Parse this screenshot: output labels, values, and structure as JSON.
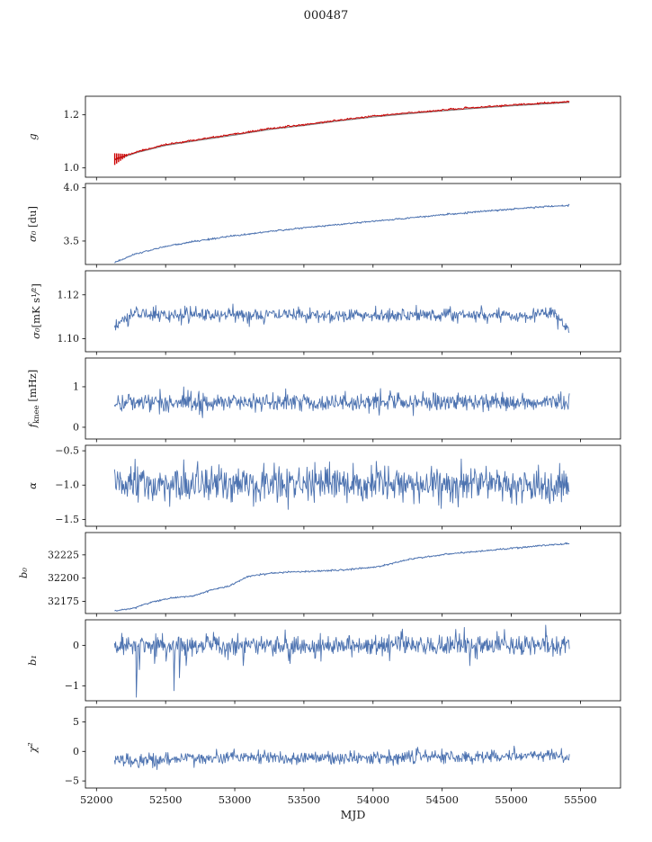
{
  "title": "000487",
  "colors": {
    "line": "#4c72b0",
    "model": "#888888",
    "fit": "#cc0000",
    "axis": "#000000",
    "text": "#1a1a1a"
  },
  "axes": {
    "xlabel": "MJD",
    "x_range": [
      51920,
      55790
    ],
    "x_ticks": [
      52000,
      52500,
      53000,
      53500,
      54000,
      54500,
      55000,
      55500
    ],
    "x_tick_labels": [
      "52000",
      "52500",
      "53000",
      "53500",
      "54000",
      "54500",
      "55000",
      "55500"
    ],
    "data_x_range": [
      52130,
      55420
    ]
  },
  "chart_data": [
    {
      "type": "line",
      "name": "g",
      "ylabel": "g",
      "ylabel_parts": [
        {
          "text": "g",
          "italic": true
        }
      ],
      "ylabel_x": 40,
      "yticks": [
        1.0,
        1.2
      ],
      "ytick_labels": [
        "1.0",
        "1.2"
      ],
      "ylim": [
        0.965,
        1.27
      ],
      "series": [
        {
          "name": "gain-model",
          "color": "#888888",
          "width": 1.3,
          "type": "smooth",
          "n": 400,
          "kx": [
            52130,
            52300,
            52500,
            52750,
            53000,
            53250,
            53500,
            53750,
            54000,
            54250,
            54500,
            54750,
            55000,
            55200,
            55420
          ],
          "ky": [
            1.03,
            1.059,
            1.085,
            1.105,
            1.124,
            1.145,
            1.16,
            1.177,
            1.192,
            1.204,
            1.215,
            1.225,
            1.234,
            1.24,
            1.247
          ]
        },
        {
          "name": "gain-fit",
          "color": "#cc0000",
          "width": 1.0,
          "type": "smooth",
          "jitter": 0.0015,
          "seed": 11,
          "n": 700,
          "kx": [
            52130,
            52300,
            52500,
            52750,
            53000,
            53250,
            53500,
            53750,
            54000,
            54250,
            54500,
            54750,
            55000,
            55200,
            55420
          ],
          "ky": [
            1.033,
            1.062,
            1.088,
            1.108,
            1.127,
            1.148,
            1.163,
            1.18,
            1.195,
            1.207,
            1.218,
            1.228,
            1.237,
            1.243,
            1.249
          ],
          "errorbars": {
            "x0": 52132,
            "x1": 52215,
            "n": 7,
            "half_start": 0.022,
            "half_end": 0.005
          }
        }
      ]
    },
    {
      "type": "line",
      "name": "sigma0-du",
      "ylabel": "σ₀ [du]",
      "ylabel_parts": [
        {
          "text": "σ₀",
          "italic": true
        },
        {
          "text": " [du]"
        }
      ],
      "ylabel_x": 40,
      "yticks": [
        3.5,
        4.0
      ],
      "ytick_labels": [
        "3.5",
        "4.0"
      ],
      "ylim": [
        3.28,
        4.04
      ],
      "series": [
        {
          "name": "sigma0-du-series",
          "color": "#4c72b0",
          "width": 1.0,
          "type": "smooth",
          "jitter": 0.004,
          "seed": 21,
          "n": 700,
          "kx": [
            52130,
            52300,
            52500,
            52750,
            53000,
            53250,
            53500,
            53750,
            54000,
            54250,
            54500,
            54750,
            55000,
            55200,
            55420
          ],
          "ky": [
            3.3,
            3.385,
            3.45,
            3.505,
            3.55,
            3.59,
            3.625,
            3.655,
            3.685,
            3.715,
            3.745,
            3.775,
            3.8,
            3.82,
            3.835
          ]
        }
      ]
    },
    {
      "type": "line",
      "name": "sigma0-mks",
      "ylabel": "σ₀[mK s¹⁄²]",
      "ylabel_parts": [
        {
          "text": "σ₀",
          "italic": true
        },
        {
          "text": "[mK s¹⁄²]"
        }
      ],
      "ylabel_x": 44,
      "yticks": [
        1.1,
        1.12
      ],
      "ytick_labels": [
        "1.10",
        "1.12"
      ],
      "ylim": [
        1.094,
        1.131
      ],
      "series": [
        {
          "name": "sigma0-mks-series",
          "color": "#4c72b0",
          "width": 0.9,
          "type": "noisy",
          "noise": 0.0016,
          "seed": 31,
          "n": 750,
          "kx": [
            52130,
            52180,
            52250,
            52320,
            52420,
            52550,
            55150,
            55300,
            55420
          ],
          "ky": [
            1.1045,
            1.108,
            1.1105,
            1.1125,
            1.1105,
            1.1108,
            1.1108,
            1.1115,
            1.1045
          ]
        }
      ]
    },
    {
      "type": "line",
      "name": "fknee",
      "ylabel": "fknee [mHz]",
      "ylabel_parts": [
        {
          "text": "f",
          "italic": true
        },
        {
          "text": "knee",
          "sub": true
        },
        {
          "text": " [mHz]"
        }
      ],
      "ylabel_x": 40,
      "yticks": [
        0,
        1
      ],
      "ytick_labels": [
        "0",
        "1"
      ],
      "ylim": [
        -0.29,
        1.71
      ],
      "series": [
        {
          "name": "fknee-series",
          "color": "#4c72b0",
          "width": 0.9,
          "type": "noisy",
          "noise": 0.115,
          "seed": 41,
          "n": 750,
          "kx": [
            52130,
            55420
          ],
          "ky": [
            0.62,
            0.62
          ]
        }
      ]
    },
    {
      "type": "line",
      "name": "alpha",
      "ylabel": "α",
      "ylabel_parts": [
        {
          "text": "α",
          "italic": true
        }
      ],
      "ylabel_x": 40,
      "yticks": [
        -1.5,
        -1.0,
        -0.5
      ],
      "ytick_labels": [
        "−1.5",
        "−1.0",
        "−0.5"
      ],
      "ylim": [
        -1.6,
        -0.42
      ],
      "series": [
        {
          "name": "alpha-series",
          "color": "#4c72b0",
          "width": 0.9,
          "type": "noisy",
          "noise": 0.13,
          "seed": 51,
          "n": 750,
          "kx": [
            52130,
            55420
          ],
          "ky": [
            -1.0,
            -1.0
          ]
        }
      ]
    },
    {
      "type": "line",
      "name": "b0",
      "ylabel": "b₀",
      "ylabel_parts": [
        {
          "text": "b₀",
          "italic": true
        }
      ],
      "ylabel_x": 30,
      "yticks": [
        32175,
        32200,
        32225
      ],
      "ytick_labels": [
        "32175",
        "32200",
        "32225"
      ],
      "ylim": [
        32162,
        32249
      ],
      "series": [
        {
          "name": "b0-series",
          "color": "#4c72b0",
          "width": 1.0,
          "type": "smooth",
          "jitter": 0.45,
          "seed": 61,
          "n": 700,
          "kx": [
            52130,
            52250,
            52370,
            52450,
            52560,
            52700,
            52820,
            52950,
            53020,
            53100,
            53250,
            53400,
            53600,
            53800,
            53950,
            54050,
            54150,
            54250,
            54400,
            54550,
            54700,
            54850,
            55000,
            55150,
            55300,
            55420
          ],
          "ky": [
            32165,
            32167,
            32173,
            32176,
            32179,
            32181,
            32187,
            32191,
            32196,
            32202,
            32205,
            32206.5,
            32207.5,
            32209,
            32211,
            32213,
            32216,
            32220,
            32223,
            32226,
            32228,
            32230,
            32232,
            32234,
            32236,
            32237
          ]
        }
      ]
    },
    {
      "type": "line",
      "name": "b1",
      "ylabel": "b₁",
      "ylabel_parts": [
        {
          "text": "b₁",
          "italic": true
        }
      ],
      "ylabel_x": 40,
      "yticks": [
        -1,
        0
      ],
      "ytick_labels": [
        "−1",
        "0"
      ],
      "ylim": [
        -1.37,
        0.63
      ],
      "series": [
        {
          "name": "b1-series",
          "color": "#4c72b0",
          "width": 0.9,
          "type": "noisy",
          "noise": 0.13,
          "seed": 71,
          "n": 750,
          "kx": [
            52130,
            55420
          ],
          "ky": [
            0,
            0
          ],
          "spikes": [
            {
              "x": 52290,
              "y": -1.28
            },
            {
              "x": 52310,
              "y": -0.6
            },
            {
              "x": 52420,
              "y": -0.45
            },
            {
              "x": 52560,
              "y": -1.12
            },
            {
              "x": 52600,
              "y": -0.8
            },
            {
              "x": 52650,
              "y": -0.5
            },
            {
              "x": 53060,
              "y": -0.5
            },
            {
              "x": 53400,
              "y": -0.45
            },
            {
              "x": 54700,
              "y": -0.5
            },
            {
              "x": 55250,
              "y": 0.5
            }
          ]
        }
      ]
    },
    {
      "type": "line",
      "name": "chi2",
      "ylabel": "χ²",
      "ylabel_parts": [
        {
          "text": "χ²",
          "italic": true
        }
      ],
      "ylabel_x": 40,
      "yticks": [
        -5,
        0,
        5
      ],
      "ytick_labels": [
        "−5",
        "0",
        "5"
      ],
      "ylim": [
        -6.2,
        7.5
      ],
      "series": [
        {
          "name": "chi2-series",
          "color": "#4c72b0",
          "width": 0.9,
          "type": "noisy",
          "noise": 0.55,
          "seed": 81,
          "n": 750,
          "kx": [
            52130,
            52350,
            52600,
            53000,
            53500,
            54000,
            54500,
            55000,
            55420
          ],
          "ky": [
            -1.4,
            -1.6,
            -1.2,
            -0.9,
            -1.1,
            -1.0,
            -0.9,
            -0.8,
            -0.7
          ]
        }
      ]
    }
  ]
}
